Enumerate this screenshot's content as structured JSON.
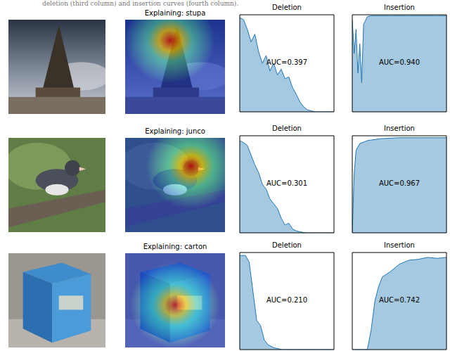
{
  "caption": "deletion (third column) and insertion curves (fourth column).",
  "panels": [
    {
      "title": "Explaining: stupa"
    },
    {
      "title": "Explaining: junco"
    },
    {
      "title": "Explaining: carton"
    }
  ],
  "chart_data": [
    {
      "type": "area",
      "title": "Deletion",
      "annotation": "AUC=0.397",
      "x": [
        0,
        0.04,
        0.08,
        0.12,
        0.16,
        0.2,
        0.24,
        0.28,
        0.32,
        0.36,
        0.4,
        0.44,
        0.48,
        0.52,
        0.56,
        0.6,
        0.64,
        0.68,
        0.72,
        0.76,
        0.8,
        0.9,
        1
      ],
      "values": [
        0.97,
        0.95,
        0.85,
        0.72,
        0.8,
        0.62,
        0.5,
        0.58,
        0.42,
        0.5,
        0.38,
        0.44,
        0.34,
        0.36,
        0.25,
        0.18,
        0.1,
        0.05,
        0.02,
        0.01,
        0,
        0,
        0
      ],
      "xlim": [
        0,
        1
      ],
      "ylim": [
        0,
        1
      ],
      "tick_labels": false,
      "color": "#1f77b4"
    },
    {
      "type": "area",
      "title": "Insertion",
      "annotation": "AUC=0.940",
      "x": [
        0,
        0.02,
        0.04,
        0.06,
        0.08,
        0.1,
        0.12,
        0.16,
        0.2,
        0.3,
        0.4,
        0.5,
        0.6,
        0.7,
        0.8,
        0.9,
        1
      ],
      "values": [
        0.95,
        0.6,
        0.85,
        0.4,
        0.7,
        0.3,
        0.9,
        0.98,
        0.99,
        0.99,
        0.99,
        0.99,
        0.99,
        0.99,
        0.99,
        0.99,
        0.99
      ],
      "xlim": [
        0,
        1
      ],
      "ylim": [
        0,
        1
      ],
      "tick_labels": false,
      "color": "#1f77b4"
    },
    {
      "type": "area",
      "title": "Deletion",
      "annotation": "AUC=0.301",
      "x": [
        0,
        0.04,
        0.08,
        0.12,
        0.16,
        0.2,
        0.24,
        0.28,
        0.32,
        0.36,
        0.4,
        0.44,
        0.48,
        0.52,
        0.56,
        0.6,
        0.64,
        0.7,
        0.8,
        0.9,
        1
      ],
      "values": [
        0.95,
        0.93,
        0.9,
        0.8,
        0.7,
        0.62,
        0.5,
        0.45,
        0.35,
        0.3,
        0.25,
        0.15,
        0.08,
        0.1,
        0.04,
        0.02,
        0.01,
        0,
        0,
        0,
        0
      ],
      "xlim": [
        0,
        1
      ],
      "ylim": [
        0,
        1
      ],
      "tick_labels": false,
      "color": "#1f77b4"
    },
    {
      "type": "area",
      "title": "Insertion",
      "annotation": "AUC=0.967",
      "x": [
        0,
        0.02,
        0.04,
        0.08,
        0.16,
        0.3,
        0.5,
        0.7,
        0.9,
        1
      ],
      "values": [
        0,
        0.6,
        0.85,
        0.92,
        0.95,
        0.97,
        0.98,
        0.98,
        0.98,
        0.98
      ],
      "xlim": [
        0,
        1
      ],
      "ylim": [
        0,
        1
      ],
      "tick_labels": false,
      "color": "#1f77b4"
    },
    {
      "type": "area",
      "title": "Deletion",
      "annotation": "AUC=0.210",
      "x": [
        0,
        0.06,
        0.1,
        0.14,
        0.18,
        0.22,
        0.26,
        0.3,
        0.36,
        0.45,
        0.6,
        0.8,
        1
      ],
      "values": [
        0.97,
        0.97,
        0.9,
        0.6,
        0.3,
        0.25,
        0.1,
        0.05,
        0.02,
        0,
        0,
        0,
        0
      ],
      "xlim": [
        0,
        1
      ],
      "ylim": [
        0,
        1
      ],
      "tick_labels": false,
      "color": "#1f77b4"
    },
    {
      "type": "area",
      "title": "Insertion",
      "annotation": "AUC=0.742",
      "x": [
        0,
        0.1,
        0.16,
        0.2,
        0.24,
        0.28,
        0.32,
        0.4,
        0.5,
        0.6,
        0.7,
        0.8,
        0.9,
        1
      ],
      "values": [
        0,
        0,
        0,
        0.2,
        0.5,
        0.65,
        0.75,
        0.8,
        0.88,
        0.92,
        0.93,
        0.95,
        0.94,
        0.95
      ],
      "xlim": [
        0,
        1
      ],
      "ylim": [
        0,
        1
      ],
      "tick_labels": false,
      "color": "#1f77b4"
    }
  ]
}
